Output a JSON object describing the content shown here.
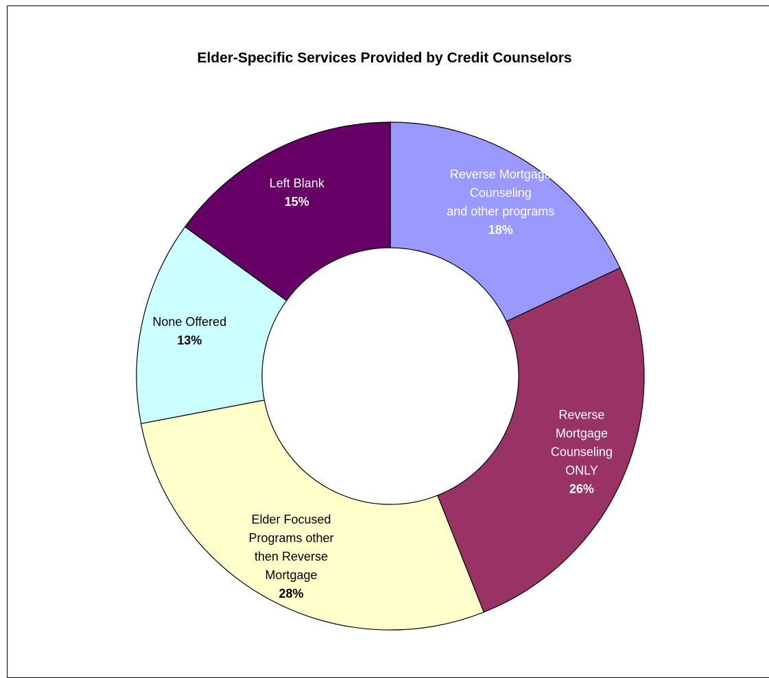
{
  "chart_data": {
    "type": "pie",
    "variant": "doughnut",
    "title": "Elder-Specific Services Provided by Credit Counselors",
    "legend": "none",
    "slices": [
      {
        "label_lines": [
          "Reverse Mortgage",
          "Counseling",
          "and other programs"
        ],
        "value": 18,
        "value_label": "18%",
        "color": "#9999ff",
        "text_color": "#ffffff"
      },
      {
        "label_lines": [
          "Reverse",
          "Mortgage",
          "Counseling",
          "ONLY"
        ],
        "value": 26,
        "value_label": "26%",
        "color": "#993366",
        "text_color": "#ffffff"
      },
      {
        "label_lines": [
          "Elder Focused",
          "Programs other",
          "then Reverse",
          "Mortgage"
        ],
        "value": 28,
        "value_label": "28%",
        "color": "#ffffcc",
        "text_color": "#000000"
      },
      {
        "label_lines": [
          "None Offered"
        ],
        "value": 13,
        "value_label": "13%",
        "color": "#ccffff",
        "text_color": "#000000"
      },
      {
        "label_lines": [
          "Left Blank"
        ],
        "value": 15,
        "value_label": "15%",
        "color": "#660066",
        "text_color": "#ffffff"
      }
    ]
  }
}
